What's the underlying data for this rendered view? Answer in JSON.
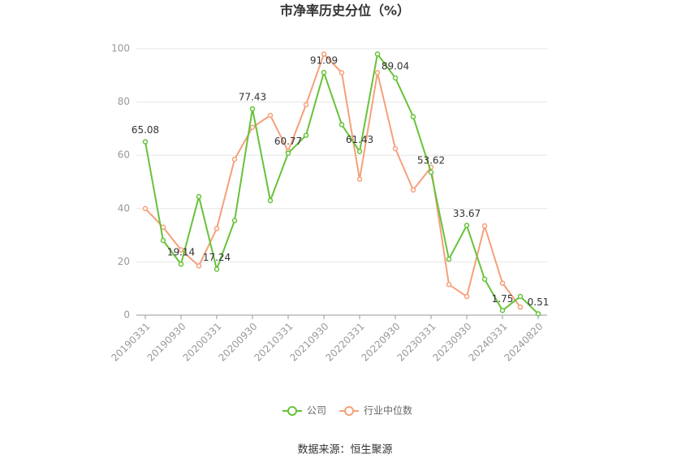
{
  "chart_data": {
    "type": "line",
    "title": "市净率历史分位（%）",
    "categories": [
      "20190331",
      null,
      "20190930",
      null,
      "20200331",
      null,
      "20200930",
      null,
      "20210331",
      null,
      "20210930",
      null,
      "20220331",
      null,
      "20220930",
      null,
      "20230331",
      null,
      "20230930",
      null,
      "20240331",
      null,
      "20240820"
    ],
    "series": [
      {
        "name": "公司",
        "color": "#67c23a",
        "values": [
          65.08,
          28,
          19.14,
          44.5,
          17.24,
          35.5,
          77.43,
          43,
          60.77,
          67.5,
          91.09,
          71.5,
          61.43,
          98,
          89.04,
          74.5,
          53.62,
          21,
          33.67,
          13.5,
          1.75,
          7,
          0.51
        ],
        "value_labels": [
          "65.08",
          null,
          "19.14",
          null,
          "17.24",
          null,
          "77.43",
          null,
          "60.77",
          null,
          "91.09",
          null,
          "61.43",
          null,
          "89.04",
          null,
          "53.62",
          null,
          "33.67",
          null,
          "1.75",
          null,
          "0.51"
        ]
      },
      {
        "name": "行业中位数",
        "color": "#f5a07a",
        "values": [
          40,
          33,
          24.5,
          18.5,
          32.5,
          58.5,
          70.5,
          75,
          61.5,
          79,
          98,
          91,
          51,
          91,
          62.5,
          47,
          55.5,
          11.5,
          7,
          33.5,
          12,
          3,
          null
        ]
      }
    ],
    "ylim": [
      0,
      100
    ],
    "yticks": [
      0,
      20,
      40,
      60,
      80,
      100
    ],
    "grid": true,
    "legend": "bottom",
    "source": "数据来源：恒生聚源"
  }
}
